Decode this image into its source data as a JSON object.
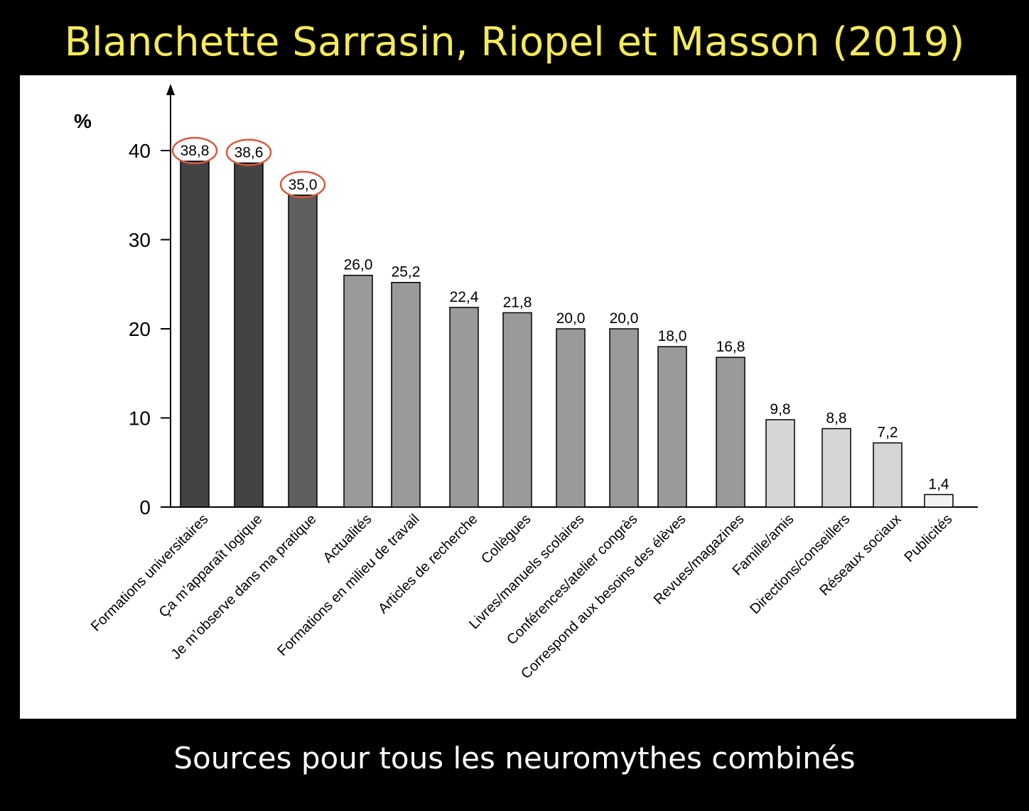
{
  "slide": {
    "title": "Blanchette Sarrasin, Riopel et Masson (2019)",
    "caption": "Sources pour tous les neuromythes combinés"
  },
  "colors": {
    "title": "#f4ea5a",
    "caption": "#ffffff",
    "background": "#000000",
    "panel": "#ffffff",
    "highlight_ring": "#d9583b",
    "axis": "#000000"
  },
  "chart_data": {
    "type": "bar",
    "ylabel": "%",
    "ylim": [
      0,
      45
    ],
    "yticks": [
      0,
      10,
      20,
      30,
      40
    ],
    "grid": false,
    "legend": "none",
    "categories": [
      "Formations universitaires",
      "Ça m’apparaît logique",
      "Je m’observe dans ma pratique",
      "Actualités",
      "Formations en milieu de travail",
      "Articles de recherche",
      "Collègues",
      "Livres/manuels scolaires",
      "Conférences/atelier congrès",
      "Correspond aux besoins des élèves",
      "Revues/magazines",
      "Famille/amis",
      "Directions/conseillers",
      "Réseaux sociaux",
      "Publicités"
    ],
    "values": [
      38.8,
      38.6,
      35.0,
      26.0,
      25.2,
      22.4,
      21.8,
      20.0,
      20.0,
      18.0,
      16.8,
      9.8,
      8.8,
      7.2,
      1.4
    ],
    "value_labels": [
      "38,8",
      "38,6",
      "35,0",
      "26,0",
      "25,2",
      "22,4",
      "21,8",
      "20,0",
      "20,0",
      "18,0",
      "16,8",
      "9,8",
      "8,8",
      "7,2",
      "1,4"
    ],
    "bar_colors": [
      "#434343",
      "#434343",
      "#5e5e5e",
      "#9a9a9a",
      "#9a9a9a",
      "#9a9a9a",
      "#9a9a9a",
      "#9a9a9a",
      "#9a9a9a",
      "#9a9a9a",
      "#9a9a9a",
      "#d6d6d6",
      "#d6d6d6",
      "#d6d6d6",
      "#f2f2f2"
    ],
    "highlighted": [
      true,
      true,
      true,
      false,
      false,
      false,
      false,
      false,
      false,
      false,
      false,
      false,
      false,
      false,
      false
    ]
  }
}
